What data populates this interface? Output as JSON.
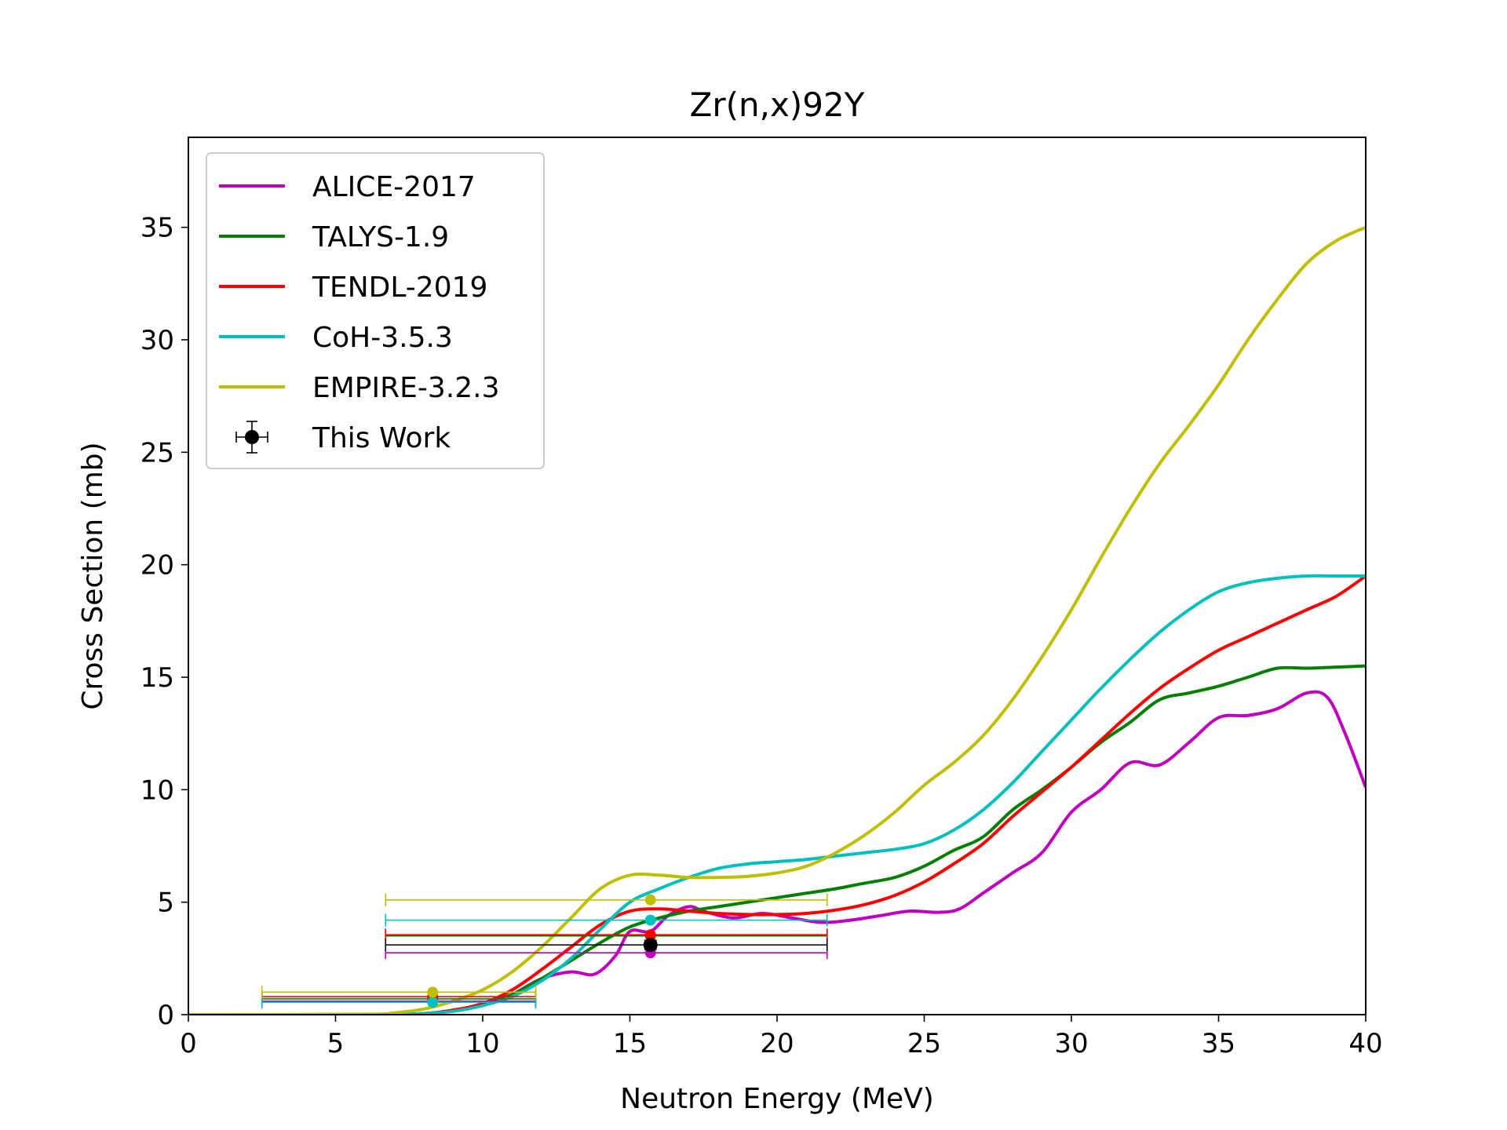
{
  "chart_data": {
    "type": "line",
    "title": "Zr(n,x)92Y",
    "xlabel": "Neutron Energy (MeV)",
    "ylabel": "Cross Section (mb)",
    "xlim": [
      0,
      40
    ],
    "ylim": [
      0,
      39
    ],
    "xticks": [
      0,
      5,
      10,
      15,
      20,
      25,
      30,
      35,
      40
    ],
    "yticks": [
      0,
      5,
      10,
      15,
      20,
      25,
      30,
      35
    ],
    "grid": false,
    "legend_position": "upper-left",
    "series": [
      {
        "name": "ALICE-2017",
        "color": "#bf00bf",
        "x": [
          0,
          6,
          8,
          9,
          10,
          11,
          12,
          13,
          13.8,
          14.5,
          15,
          15.7,
          16.3,
          17,
          17.5,
          18.5,
          19.5,
          20.5,
          21.5,
          22.5,
          23.5,
          24.5,
          25.5,
          26.2,
          27,
          28,
          29,
          30,
          31,
          32,
          33,
          34,
          35,
          36,
          37,
          38,
          38.7,
          39.3,
          40
        ],
        "y": [
          0,
          0,
          0.05,
          0.2,
          0.45,
          0.9,
          1.6,
          1.9,
          1.8,
          2.6,
          3.7,
          3.7,
          4.4,
          4.8,
          4.6,
          4.3,
          4.5,
          4.3,
          4.1,
          4.2,
          4.4,
          4.6,
          4.55,
          4.7,
          5.4,
          6.3,
          7.2,
          9.0,
          10.0,
          11.2,
          11.1,
          12.1,
          13.2,
          13.3,
          13.6,
          14.3,
          14.1,
          12.5,
          10.1
        ]
      },
      {
        "name": "TALYS-1.9",
        "color": "#007f00",
        "x": [
          0,
          6,
          8,
          9,
          10,
          11,
          12,
          13,
          14,
          15,
          16,
          17,
          18,
          19,
          20,
          21,
          22,
          23,
          24,
          25,
          26,
          27,
          28,
          29,
          30,
          31,
          32,
          33,
          34,
          35,
          36,
          37,
          38,
          39,
          40
        ],
        "y": [
          0,
          0,
          0.05,
          0.2,
          0.45,
          0.9,
          1.6,
          2.4,
          3.2,
          3.9,
          4.3,
          4.6,
          4.8,
          5.0,
          5.2,
          5.4,
          5.6,
          5.85,
          6.1,
          6.6,
          7.3,
          7.9,
          9.1,
          10.0,
          11.0,
          12.1,
          13.0,
          14.0,
          14.3,
          14.6,
          15.0,
          15.4,
          15.4,
          15.45,
          15.5
        ]
      },
      {
        "name": "TENDL-2019",
        "color": "#ff0000",
        "x": [
          0,
          6,
          8,
          9,
          10,
          11,
          12,
          13,
          14,
          15,
          16,
          17,
          18,
          19,
          20,
          21,
          22,
          23,
          24,
          25,
          26,
          27,
          28,
          29,
          30,
          31,
          32,
          33,
          34,
          35,
          36,
          37,
          38,
          39,
          40
        ],
        "y": [
          0,
          0,
          0.05,
          0.2,
          0.5,
          1.1,
          2.0,
          3.0,
          4.0,
          4.6,
          4.7,
          4.6,
          4.5,
          4.45,
          4.45,
          4.5,
          4.65,
          4.9,
          5.3,
          5.9,
          6.7,
          7.6,
          8.8,
          9.9,
          11.0,
          12.2,
          13.4,
          14.5,
          15.4,
          16.2,
          16.8,
          17.4,
          18.0,
          18.6,
          19.5
        ]
      },
      {
        "name": "CoH-3.5.3",
        "color": "#00bfbf",
        "x": [
          0,
          6,
          8,
          9,
          10,
          11,
          12,
          13,
          14,
          15,
          16,
          17,
          18,
          19,
          20,
          21,
          22,
          23,
          24,
          25,
          26,
          27,
          28,
          29,
          30,
          31,
          32,
          33,
          34,
          35,
          36,
          37,
          38,
          39,
          40
        ],
        "y": [
          0,
          0,
          0.05,
          0.15,
          0.4,
          0.8,
          1.5,
          2.5,
          3.8,
          5.0,
          5.6,
          6.1,
          6.5,
          6.7,
          6.8,
          6.9,
          7.05,
          7.2,
          7.35,
          7.6,
          8.2,
          9.1,
          10.3,
          11.7,
          13.1,
          14.5,
          15.8,
          17.0,
          18.0,
          18.8,
          19.2,
          19.4,
          19.5,
          19.5,
          19.5
        ]
      },
      {
        "name": "EMPIRE-3.2.3",
        "color": "#bfbf00",
        "x": [
          0,
          6,
          7,
          8,
          9,
          10,
          11,
          12,
          13,
          14,
          15,
          16,
          17,
          18,
          19,
          20,
          21,
          22,
          23,
          24,
          25,
          26,
          27,
          28,
          29,
          30,
          31,
          32,
          33,
          34,
          35,
          36,
          37,
          38,
          39,
          40
        ],
        "y": [
          0,
          0.02,
          0.08,
          0.25,
          0.6,
          1.1,
          1.9,
          3.0,
          4.3,
          5.6,
          6.2,
          6.2,
          6.1,
          6.1,
          6.15,
          6.3,
          6.6,
          7.2,
          8.0,
          9.0,
          10.2,
          11.2,
          12.4,
          14.0,
          15.9,
          18.0,
          20.3,
          22.5,
          24.5,
          26.2,
          28.0,
          30.0,
          31.8,
          33.4,
          34.4,
          35.0
        ]
      }
    ],
    "point_series": [
      {
        "name": "ALICE-2017",
        "color": "#bf00bf",
        "points": [
          {
            "x": 8.3,
            "y": 0.6,
            "xerr": [
              2.5,
              11.8
            ]
          },
          {
            "x": 15.7,
            "y": 2.75,
            "xerr": [
              6.7,
              21.7
            ]
          }
        ]
      },
      {
        "name": "TALYS-1.9",
        "color": "#007f00",
        "points": [
          {
            "x": 8.3,
            "y": 0.7,
            "xerr": [
              2.5,
              11.8
            ]
          },
          {
            "x": 15.7,
            "y": 3.5,
            "xerr": [
              6.7,
              21.7
            ]
          }
        ]
      },
      {
        "name": "TENDL-2019",
        "color": "#ff0000",
        "points": [
          {
            "x": 8.3,
            "y": 0.8,
            "xerr": [
              2.5,
              11.8
            ]
          },
          {
            "x": 15.7,
            "y": 3.55,
            "xerr": [
              6.7,
              21.7
            ]
          }
        ]
      },
      {
        "name": "CoH-3.5.3",
        "color": "#00bfbf",
        "points": [
          {
            "x": 8.3,
            "y": 0.55,
            "xerr": [
              2.5,
              11.8
            ]
          },
          {
            "x": 15.7,
            "y": 4.2,
            "xerr": [
              6.7,
              21.7
            ]
          }
        ]
      },
      {
        "name": "EMPIRE-3.2.3",
        "color": "#bfbf00",
        "points": [
          {
            "x": 8.3,
            "y": 1.0,
            "xerr": [
              2.5,
              11.8
            ]
          },
          {
            "x": 15.7,
            "y": 5.1,
            "xerr": [
              6.7,
              21.7
            ]
          }
        ]
      }
    ],
    "experiment": {
      "name": "This Work",
      "color": "#000000",
      "points": [
        {
          "x": 15.7,
          "y": 3.1,
          "xerr": [
            6.7,
            21.7
          ],
          "yerr": [
            2.9,
            3.3
          ]
        }
      ]
    },
    "legend": [
      "ALICE-2017",
      "TALYS-1.9",
      "TENDL-2019",
      "CoH-3.5.3",
      "EMPIRE-3.2.3",
      "This Work"
    ]
  }
}
